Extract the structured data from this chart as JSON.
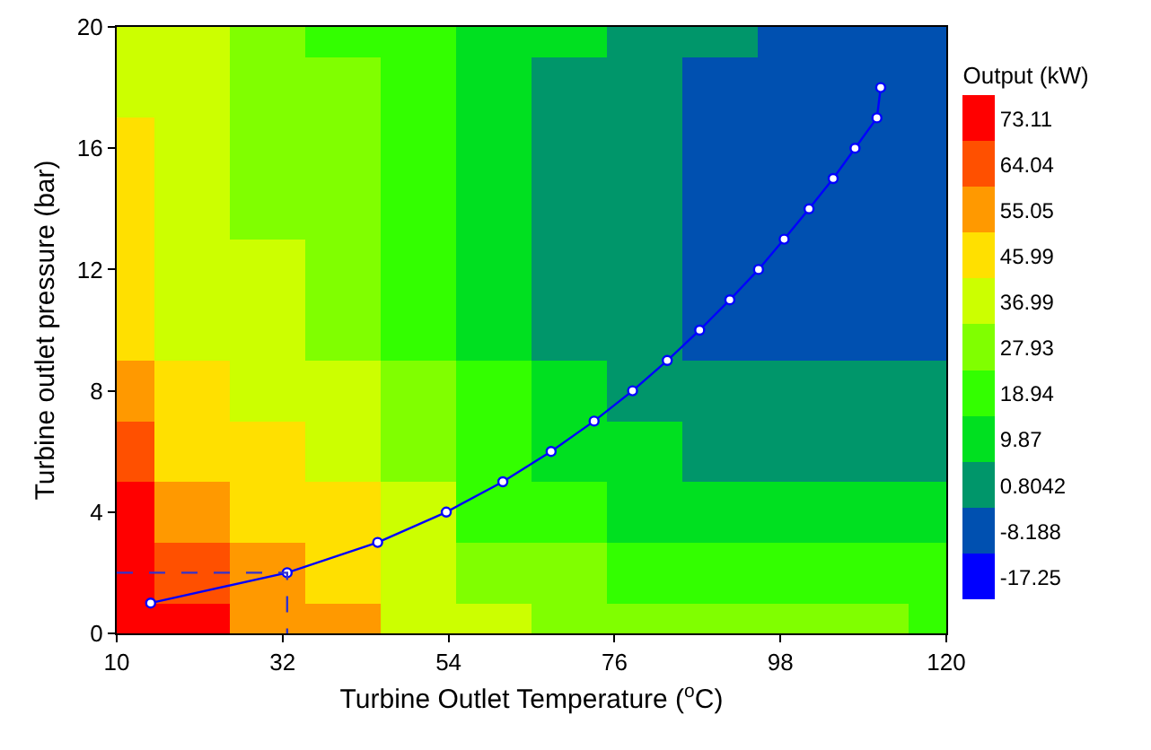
{
  "chart_data": {
    "type": "heatmap",
    "xlabel": "Turbine Outlet Temperature ($^{o}$C)",
    "ylabel": "Turbine outlet pressure (bar)",
    "clabel": "Output (kW)",
    "xlim": [
      10,
      120
    ],
    "xticks": [
      10,
      32,
      54,
      76,
      98,
      120
    ],
    "ylim": [
      0,
      20
    ],
    "yticks": [
      0,
      4,
      8,
      12,
      16,
      20
    ],
    "clim": [
      -21.78,
      77.64
    ],
    "cticks": [
      -17.25,
      -8.188,
      0.8042,
      9.87,
      18.94,
      27.93,
      36.99,
      45.99,
      55.05,
      64.04,
      73.11
    ],
    "colors": [
      "#0000ff",
      "#0050b0",
      "#00966a",
      "#00e020",
      "#33ff00",
      "#80ff00",
      "#ccff00",
      "#ffe000",
      "#ff9900",
      "#ff5000",
      "#ff0000"
    ],
    "cells": [
      [
        40,
        35.1,
        29.1,
        23,
        16.4,
        11.1,
        6.3,
        2.1,
        -2.6,
        -7,
        -9.5,
        -10.5
      ],
      [
        41.2,
        36,
        30.1,
        23.5,
        16.5,
        10.3,
        4.7,
        0,
        -4.5,
        -8,
        -10,
        -10.5
      ],
      [
        42.5,
        37,
        31.1,
        24.1,
        16.7,
        9.6,
        3.2,
        -2.1,
        -6.5,
        -9,
        -10.5,
        -10
      ],
      [
        43,
        37.8,
        32,
        25.3,
        16.7,
        9.3,
        3,
        -2.4,
        -6.7,
        -9.3,
        -10.5,
        -9.8
      ],
      [
        43.5,
        38.5,
        33.5,
        26.5,
        16.7,
        8.9,
        2.7,
        -2.6,
        -7,
        -9.5,
        -10.5,
        -9.5
      ],
      [
        49.5,
        40.5,
        35.5,
        29.2,
        20.5,
        11,
        3.9,
        -0.5,
        -5,
        -7.5,
        -7,
        -5
      ],
      [
        52.5,
        45,
        38.5,
        33,
        25,
        14.4,
        6.5,
        1.5,
        -1,
        -2,
        -2.3,
        -1.5
      ],
      [
        60,
        49.8,
        42.9,
        37.2,
        29.8,
        19.5,
        12.3,
        8.5,
        4.8,
        3,
        2.5,
        3
      ],
      [
        69.5,
        55.5,
        47.7,
        42,
        34.5,
        23,
        15.3,
        11.5,
        9.5,
        8,
        7.5,
        7.5
      ],
      [
        73.5,
        66.4,
        54.2,
        45.2,
        38.2,
        31.1,
        24.1,
        20.5,
        18,
        16.5,
        15.5,
        15
      ],
      [
        77.5,
        69.5,
        59,
        51.5,
        40.8,
        34.5,
        30.5,
        28.5,
        26.5,
        25,
        23.5,
        22.5
      ]
    ],
    "series": [
      {
        "type": "line",
        "color": "#0000ff",
        "marker": "circle",
        "line_style": "solid",
        "x": [
          14.5,
          32.6,
          44.6,
          53.7,
          61.2,
          67.6,
          73.3,
          78.4,
          83,
          87.3,
          91.3,
          95.1,
          98.5,
          101.8,
          105,
          107.9,
          110.8,
          111.3
        ],
        "values": [
          1,
          2,
          3,
          4,
          5,
          6,
          7,
          8,
          9,
          10,
          11,
          12,
          13,
          14,
          15,
          16,
          17,
          18
        ]
      },
      {
        "type": "line",
        "color": "#3333cc",
        "marker": "none",
        "line_style": "dashed",
        "x": [
          10,
          32.6,
          32.6
        ],
        "values": [
          2,
          2,
          0
        ]
      }
    ]
  }
}
